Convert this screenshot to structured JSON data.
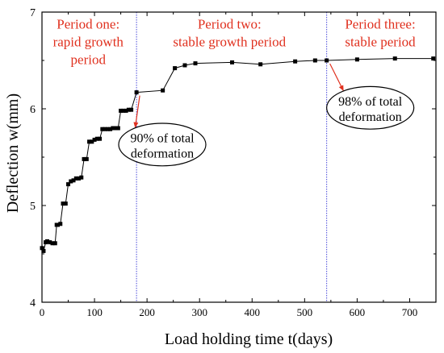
{
  "chart_data": {
    "type": "line",
    "title": "",
    "xlabel": "Load holding time   t(days)",
    "ylabel": "Deflection   w(mm)",
    "xlim": [
      0,
      750
    ],
    "ylim": [
      4,
      7
    ],
    "x_ticks": [
      0,
      100,
      200,
      300,
      400,
      500,
      600,
      700
    ],
    "y_ticks": [
      4,
      5,
      6,
      7
    ],
    "grid": false,
    "series": [
      {
        "x": [
          0,
          3,
          7,
          10,
          15,
          20,
          25,
          28,
          30,
          35,
          40,
          45,
          50,
          55,
          60,
          65,
          70,
          75,
          80,
          85,
          90,
          95,
          100,
          105,
          110,
          115,
          120,
          125,
          130,
          135,
          140,
          145,
          150,
          155,
          160,
          165,
          170,
          180,
          230,
          253,
          272,
          292,
          362,
          416,
          482,
          520,
          542,
          600,
          672,
          745
        ],
        "y": [
          4.56,
          4.53,
          4.62,
          4.63,
          4.62,
          4.61,
          4.61,
          4.8,
          4.8,
          4.81,
          5.02,
          5.02,
          5.22,
          5.25,
          5.26,
          5.28,
          5.28,
          5.29,
          5.48,
          5.48,
          5.66,
          5.66,
          5.68,
          5.69,
          5.69,
          5.79,
          5.79,
          5.79,
          5.79,
          5.8,
          5.8,
          5.8,
          5.98,
          5.98,
          5.98,
          5.99,
          5.99,
          6.17,
          6.19,
          6.42,
          6.45,
          6.47,
          6.48,
          6.46,
          6.49,
          6.5,
          6.5,
          6.51,
          6.52,
          6.52
        ]
      }
    ],
    "dividers": [
      180,
      542
    ],
    "period_labels": [
      {
        "lines": [
          "Period one:",
          "rapid growth",
          "period"
        ],
        "x": 88,
        "y": 6.93
      },
      {
        "lines": [
          "Period two:",
          "stable growth period"
        ],
        "x": 357,
        "y": 6.93
      },
      {
        "lines": [
          "Period three:",
          "stable period"
        ],
        "x": 644,
        "y": 6.93
      }
    ],
    "annotations": [
      {
        "lines": [
          "90% of total",
          "deformation"
        ],
        "point": [
          180,
          6.17
        ],
        "cx": 229,
        "cy": 5.63,
        "rx": 54,
        "ry": 0.22
      },
      {
        "lines": [
          "98% of total",
          "deformation"
        ],
        "point": [
          542,
          6.5
        ],
        "cx": 625,
        "cy": 6.01,
        "rx": 54,
        "ry": 0.22
      }
    ],
    "colors": {
      "axis": "#000000",
      "line": "#000000",
      "divider": "#4a4ad9",
      "period_text": "#e0301e",
      "arrow": "#e0301e"
    }
  }
}
